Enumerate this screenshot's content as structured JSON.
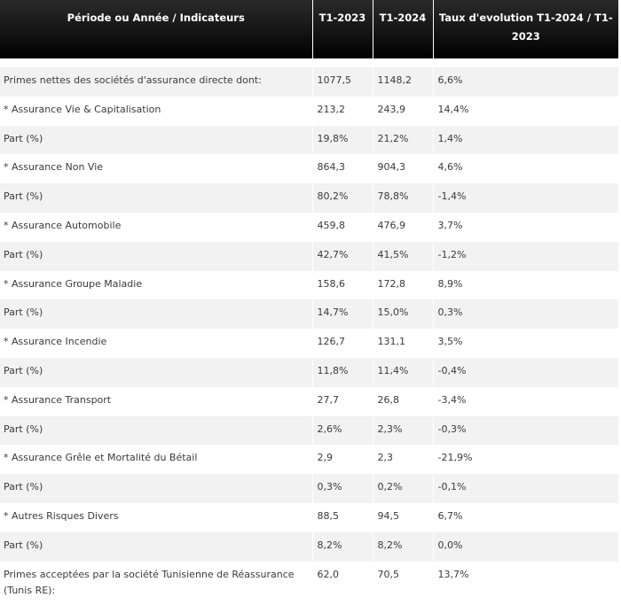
{
  "header": {
    "col1": "Période ou Année / Indicateurs",
    "col2": "T1-2023",
    "col3": "T1-2024",
    "col4": "Taux d'evolution T1-2024 / T1-2023"
  },
  "rows": [
    {
      "label": "Primes nettes des sociétés d'assurance directe dont:",
      "t1_2023": "1077,5",
      "t1_2024": "1148,2",
      "taux": "6,6%"
    },
    {
      "label": "* Assurance Vie & Capitalisation",
      "t1_2023": "213,2",
      "t1_2024": "243,9",
      "taux": "14,4%"
    },
    {
      "label": "Part (%)",
      "t1_2023": "19,8%",
      "t1_2024": "21,2%",
      "taux": "1,4%"
    },
    {
      "label": "* Assurance Non Vie",
      "t1_2023": "864,3",
      "t1_2024": "904,3",
      "taux": "4,6%"
    },
    {
      "label": "Part (%)",
      "t1_2023": "80,2%",
      "t1_2024": "78,8%",
      "taux": "-1,4%"
    },
    {
      "label": "* Assurance Automobile",
      "t1_2023": "459,8",
      "t1_2024": "476,9",
      "taux": "3,7%"
    },
    {
      "label": "Part (%)",
      "t1_2023": "42,7%",
      "t1_2024": "41,5%",
      "taux": "-1,2%"
    },
    {
      "label": "* Assurance Groupe Maladie",
      "t1_2023": "158,6",
      "t1_2024": "172,8",
      "taux": "8,9%"
    },
    {
      "label": "Part (%)",
      "t1_2023": "14,7%",
      "t1_2024": "15,0%",
      "taux": "0,3%"
    },
    {
      "label": "* Assurance Incendie",
      "t1_2023": "126,7",
      "t1_2024": "131,1",
      "taux": "3,5%"
    },
    {
      "label": "Part (%)",
      "t1_2023": "11,8%",
      "t1_2024": "11,4%",
      "taux": "-0,4%"
    },
    {
      "label": "* Assurance Transport",
      "t1_2023": "27,7",
      "t1_2024": "26,8",
      "taux": "-3,4%"
    },
    {
      "label": "Part (%)",
      "t1_2023": "2,6%",
      "t1_2024": "2,3%",
      "taux": "-0,3%"
    },
    {
      "label": "* Assurance Grêle et Mortalité du Bétail",
      "t1_2023": "2,9",
      "t1_2024": "2,3",
      "taux": "-21,9%"
    },
    {
      "label": "Part (%)",
      "t1_2023": "0,3%",
      "t1_2024": "0,2%",
      "taux": "-0,1%"
    },
    {
      "label": "* Autres Risques Divers",
      "t1_2023": "88,5",
      "t1_2024": "94,5",
      "taux": "6,7%"
    },
    {
      "label": "Part (%)",
      "t1_2023": "8,2%",
      "t1_2024": "8,2%",
      "taux": "0,0%"
    },
    {
      "label": "Primes acceptées par la société Tunisienne de Réassurance (Tunis RE):",
      "t1_2023": "62,0",
      "t1_2024": "70,5",
      "taux": "13,7%"
    }
  ]
}
